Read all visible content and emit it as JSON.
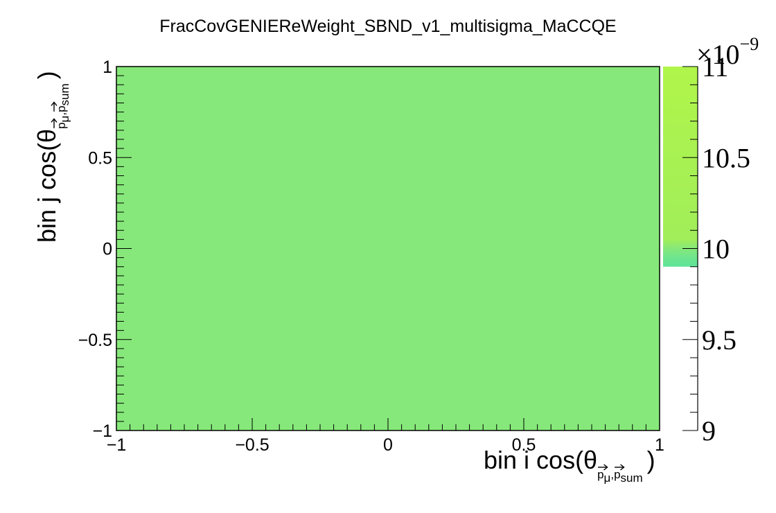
{
  "chart_data": {
    "type": "heatmap",
    "title": "FracCovGENIEReWeight_SBND_v1_multisigma_MaCCQE",
    "xlabel": {
      "prefix": "bin i cos(θ",
      "sub1": "p",
      "sub2": "μ",
      "sep": ",",
      "sub3": "p",
      "sub4": "sum",
      "suffix": ")"
    },
    "ylabel": {
      "prefix": "bin j cos(θ",
      "sub1": "p",
      "sub2": "μ",
      "sep": ",",
      "sub3": "p",
      "sub4": "sum",
      "suffix": ")"
    },
    "xlim": [
      -1,
      1
    ],
    "ylim": [
      -1,
      1
    ],
    "x_ticks": [
      {
        "value": -1,
        "label": "−1"
      },
      {
        "value": -0.5,
        "label": "−0.5"
      },
      {
        "value": 0,
        "label": "0"
      },
      {
        "value": 0.5,
        "label": "0.5"
      },
      {
        "value": 1,
        "label": "1"
      }
    ],
    "y_ticks": [
      {
        "value": -1,
        "label": "−1"
      },
      {
        "value": -0.5,
        "label": "−0.5"
      },
      {
        "value": 0,
        "label": "0"
      },
      {
        "value": 0.5,
        "label": "0.5"
      },
      {
        "value": 1,
        "label": "1"
      }
    ],
    "cells": [
      {
        "x_range": [
          -1,
          1
        ],
        "y_range": [
          -1,
          1
        ],
        "value": 10.2,
        "color": "#86e87a"
      }
    ],
    "colorbar": {
      "range": [
        9,
        11
      ],
      "filled_range": [
        9.9,
        11
      ],
      "multiplier": {
        "base": "×10",
        "exponent": "−9"
      },
      "ticks": [
        {
          "value": 9,
          "label": "9"
        },
        {
          "value": 9.5,
          "label": "9.5"
        },
        {
          "value": 10,
          "label": "10"
        },
        {
          "value": 10.5,
          "label": "10.5"
        },
        {
          "value": 11,
          "label": "11"
        }
      ],
      "stops": [
        {
          "value": 9.9,
          "color": "#5ee39a"
        },
        {
          "value": 9.95,
          "color": "#6ee58e"
        },
        {
          "value": 10.0,
          "color": "#86e87a"
        },
        {
          "value": 10.05,
          "color": "#a1ee5a"
        },
        {
          "value": 11.0,
          "color": "#b0f54a"
        }
      ]
    },
    "grid": false
  }
}
